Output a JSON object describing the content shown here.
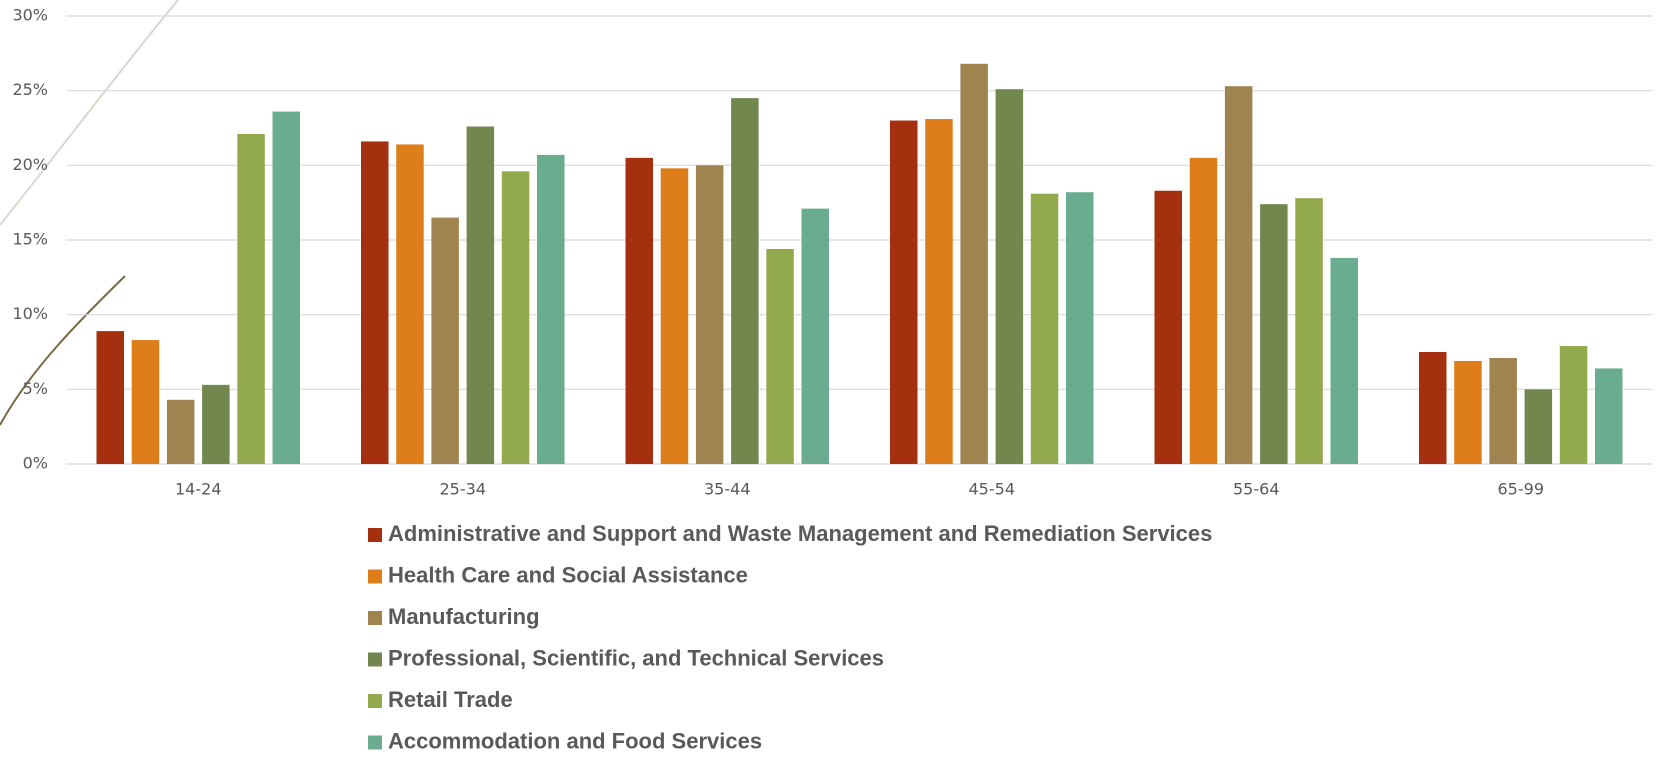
{
  "chart_data": {
    "type": "bar",
    "categories": [
      "14-24",
      "25-34",
      "35-44",
      "45-54",
      "55-64",
      "65-99"
    ],
    "series": [
      {
        "name": "Administrative and Support and Waste Management and Remediation Services",
        "color": "#a5300f",
        "values": [
          8.9,
          21.6,
          20.5,
          23.0,
          18.3,
          7.5
        ]
      },
      {
        "name": "Health Care and Social Assistance",
        "color": "#dd7e1b",
        "values": [
          8.3,
          21.4,
          19.8,
          23.1,
          20.5,
          6.9
        ]
      },
      {
        "name": "Manufacturing",
        "color": "#a0844f",
        "values": [
          4.3,
          16.5,
          20.0,
          26.8,
          25.3,
          7.1
        ]
      },
      {
        "name": "Professional, Scientific, and Technical Services",
        "color": "#72874e",
        "values": [
          5.3,
          22.6,
          24.5,
          25.1,
          17.4,
          5.0
        ]
      },
      {
        "name": "Retail Trade",
        "color": "#93a94e",
        "values": [
          22.1,
          19.6,
          14.4,
          18.1,
          17.8,
          7.9
        ]
      },
      {
        "name": "Accommodation and Food Services",
        "color": "#6aac90",
        "values": [
          23.6,
          20.7,
          17.1,
          18.2,
          13.8,
          6.4
        ]
      }
    ],
    "ylim": [
      0,
      30
    ],
    "yticks": [
      {
        "value": 0,
        "label": "0%"
      },
      {
        "value": 5,
        "label": "5%"
      },
      {
        "value": 10,
        "label": "10%"
      },
      {
        "value": 15,
        "label": "15%"
      },
      {
        "value": 20,
        "label": "20%"
      },
      {
        "value": 25,
        "label": "25%"
      },
      {
        "value": 30,
        "label": "30%"
      }
    ],
    "grid": true
  }
}
